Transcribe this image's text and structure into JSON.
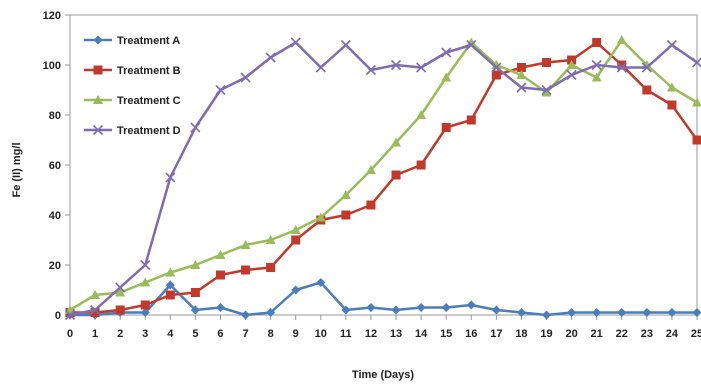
{
  "chart_data": {
    "type": "line",
    "xlabel": "Time (Days)",
    "ylabel": "Fe (II) mg/l",
    "xlim": [
      0,
      25
    ],
    "ylim": [
      0,
      120
    ],
    "y_ticks": [
      0,
      20,
      40,
      60,
      80,
      100,
      120
    ],
    "x": [
      0,
      1,
      2,
      3,
      4,
      5,
      6,
      7,
      8,
      9,
      10,
      11,
      12,
      13,
      14,
      15,
      16,
      17,
      18,
      19,
      20,
      21,
      22,
      23,
      24,
      25
    ],
    "grid": false,
    "legend_position": "top-left",
    "series": [
      {
        "name": "Treatment A",
        "color": "#4a7ebb",
        "marker": "diamond",
        "values": [
          0,
          0,
          1,
          1,
          12,
          2,
          3,
          0,
          1,
          10,
          13,
          2,
          3,
          2,
          3,
          3,
          4,
          2,
          1,
          0,
          1,
          1,
          1,
          1,
          1,
          1
        ]
      },
      {
        "name": "Treatment B",
        "color": "#c0392b",
        "marker": "square",
        "values": [
          1,
          1,
          2,
          4,
          8,
          9,
          16,
          18,
          19,
          30,
          38,
          40,
          44,
          56,
          60,
          75,
          78,
          96,
          99,
          101,
          102,
          109,
          100,
          90,
          84,
          70
        ]
      },
      {
        "name": "Treatment C",
        "color": "#9bbb59",
        "marker": "triangle",
        "values": [
          2,
          8,
          9,
          13,
          17,
          20,
          24,
          28,
          30,
          34,
          39,
          48,
          58,
          69,
          80,
          95,
          109,
          100,
          96,
          89,
          100,
          95,
          110,
          100,
          91,
          85
        ]
      },
      {
        "name": "Treatment D",
        "color": "#7e6bb0",
        "marker": "x",
        "values": [
          0,
          2,
          11,
          20,
          55,
          75,
          90,
          95,
          103,
          109,
          99,
          108,
          98,
          100,
          99,
          105,
          108,
          99,
          91,
          90,
          96,
          100,
          99,
          99,
          108,
          101
        ]
      }
    ]
  }
}
